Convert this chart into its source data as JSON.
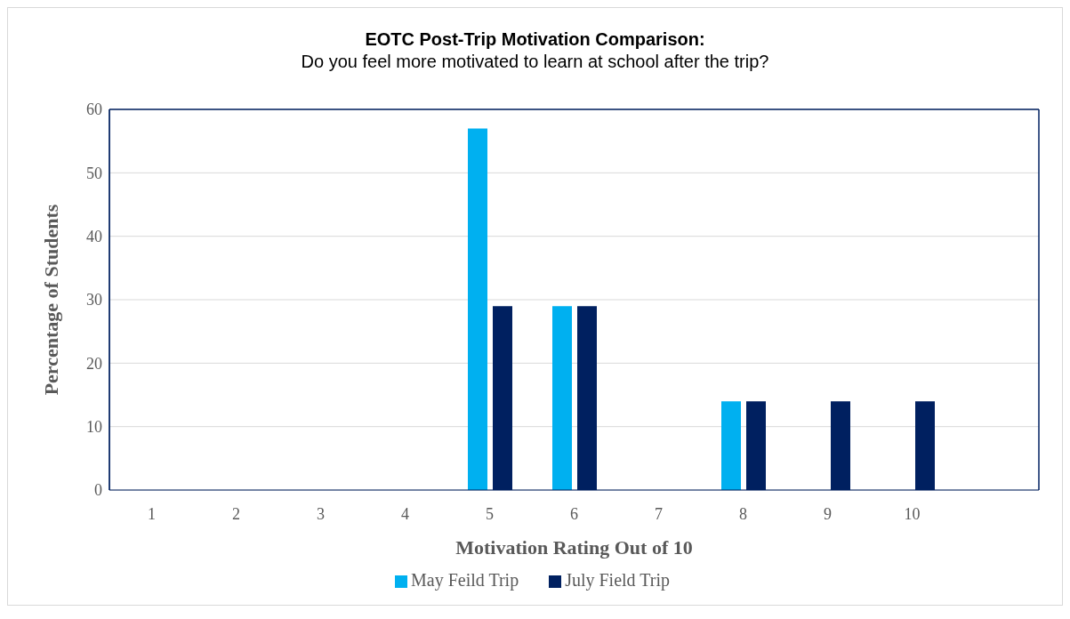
{
  "chart_data": {
    "type": "bar",
    "title": "EOTC Post-Trip Motivation Comparison:",
    "subtitle": "Do you feel more motivated to learn at school after the trip?",
    "xlabel": "Motivation Rating Out of 10",
    "ylabel": "Percentage of Students",
    "categories": [
      "1",
      "2",
      "3",
      "4",
      "5",
      "6",
      "7",
      "8",
      "9",
      "10",
      null
    ],
    "series": [
      {
        "name": "May Feild Trip",
        "color": "#00b0f0",
        "values": [
          0,
          0,
          0,
          0,
          57,
          29,
          0,
          14,
          0,
          0,
          0
        ]
      },
      {
        "name": "July Field Trip",
        "color": "#002060",
        "values": [
          0,
          0,
          0,
          0,
          29,
          29,
          0,
          14,
          14,
          14,
          0
        ]
      }
    ],
    "ylim": [
      0,
      60
    ],
    "yticks": [
      0,
      10,
      20,
      30,
      40,
      50,
      60
    ],
    "grid": "y",
    "legend": "bottom"
  }
}
